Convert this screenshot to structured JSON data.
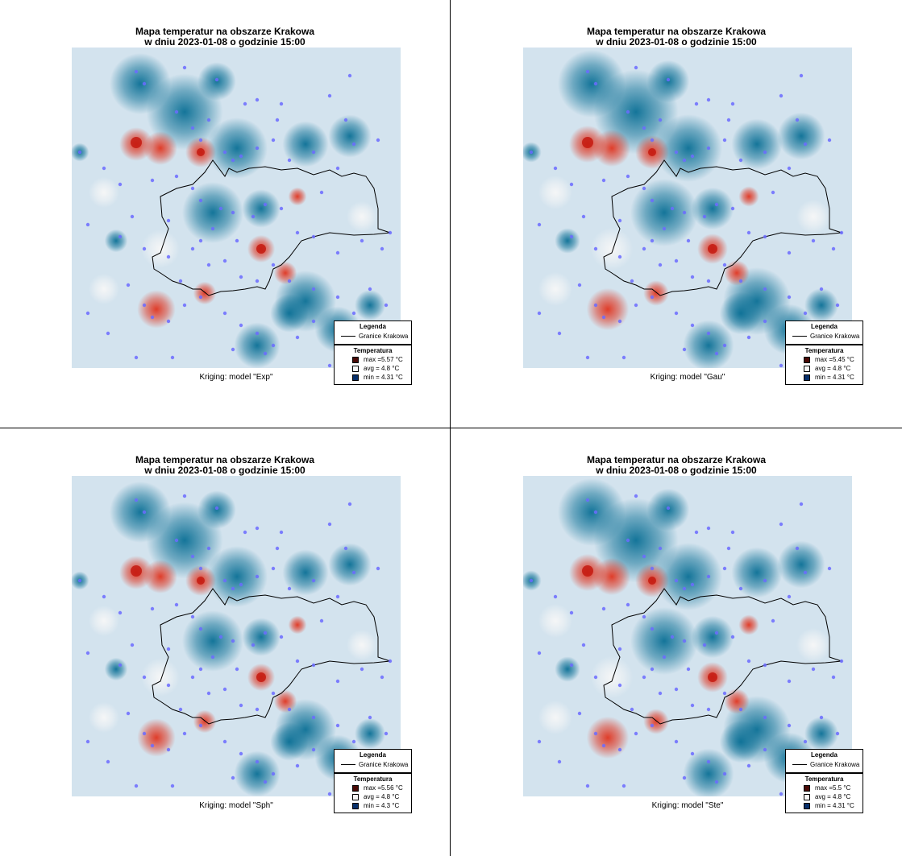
{
  "panels": [
    {
      "title_line1": "Mapa temperatur na obszarze Krakowa",
      "title_line2": "w dniu 2023-01-08 o godzinie 15:00",
      "caption": "Kriging: model \"Exp\"",
      "legend": {
        "title": "Legenda",
        "boundary_label": "Granice Krakowa"
      },
      "temperature": {
        "title": "Temperatura",
        "max": "5.57 °C",
        "avg": "4.8 °C",
        "min": "4.31 °C"
      }
    },
    {
      "title_line1": "Mapa temperatur na obszarze Krakowa",
      "title_line2": "w dniu 2023-01-08 o godzinie 15:00",
      "caption": "Kriging: model \"Gau\"",
      "legend": {
        "title": "Legenda",
        "boundary_label": "Granice Krakowa"
      },
      "temperature": {
        "title": "Temperatura",
        "max": "5.45 °C",
        "avg": "4.8 °C",
        "min": "4.31 °C"
      }
    },
    {
      "title_line1": "Mapa temperatur na obszarze Krakowa",
      "title_line2": "w dniu 2023-01-08 o godzinie 15:00",
      "caption": "Kriging: model \"Sph\"",
      "legend": {
        "title": "Legenda",
        "boundary_label": "Granice Krakowa"
      },
      "temperature": {
        "title": "Temperatura",
        "max": "5.56 °C",
        "avg": "4.8 °C",
        "min": "4.3 °C"
      }
    },
    {
      "title_line1": "Mapa temperatur na obszarze Krakowa",
      "title_line2": "w dniu 2023-01-08 o godzinie 15:00",
      "caption": "Kriging: model \"Ste\"",
      "legend": {
        "title": "Legenda",
        "boundary_label": "Granice Krakowa"
      },
      "temperature": {
        "title": "Temperatura",
        "max": "5.5 °C",
        "avg": "4.8 °C",
        "min": "4.31 °C"
      }
    }
  ],
  "colors": {
    "background_field": "#d3e3ee",
    "cold": "#0a6f95",
    "cold_dark": "#08306b",
    "warm": "#e0341f",
    "warm_dark": "#4a0a06",
    "neutral": "#f7f7f7",
    "station_dot": "#6b6bff",
    "boundary": "#000000"
  }
}
